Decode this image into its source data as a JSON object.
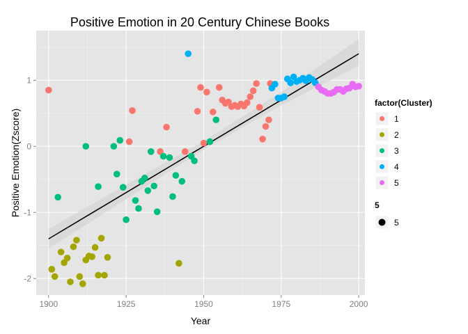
{
  "chart_data": {
    "type": "scatter",
    "title": "Positive Emotion in 20 Century Chinese Books",
    "xlabel": "Year",
    "ylabel": "Positive Emotion(Zscore)",
    "xlim": [
      1896,
      2002
    ],
    "ylim": [
      -2.25,
      1.75
    ],
    "x_ticks": [
      1900,
      1925,
      1950,
      1975,
      2000
    ],
    "x_tick_labels": [
      "1900",
      "1925",
      "1950",
      "1975",
      "2000"
    ],
    "y_ticks": [
      -2,
      -1,
      0,
      1
    ],
    "y_tick_labels": [
      "-2",
      "-1",
      "0",
      "1"
    ],
    "grid": true,
    "fit_line": {
      "x": [
        1900,
        2000
      ],
      "y": [
        -1.4,
        1.4
      ]
    },
    "fit_band": {
      "x": [
        1900,
        1925,
        1950,
        1975,
        2000
      ],
      "lower": [
        -1.55,
        -0.8,
        -0.05,
        0.62,
        1.22
      ],
      "upper": [
        -1.25,
        -0.58,
        0.08,
        0.82,
        1.62
      ]
    },
    "series": [
      {
        "name": "1",
        "color": "#F8766D",
        "points": [
          [
            1900,
            0.85
          ],
          [
            1926,
            0.07
          ],
          [
            1927,
            0.54
          ],
          [
            1936,
            -0.08
          ],
          [
            1938,
            0.29
          ],
          [
            1944,
            -0.08
          ],
          [
            1948,
            0.53
          ],
          [
            1949,
            0.89
          ],
          [
            1950,
            0.05
          ],
          [
            1951,
            0.82
          ],
          [
            1953,
            0.52
          ],
          [
            1955,
            0.89
          ],
          [
            1956,
            0.7
          ],
          [
            1957,
            0.65
          ],
          [
            1958,
            0.67
          ],
          [
            1959,
            0.6
          ],
          [
            1960,
            0.62
          ],
          [
            1961,
            0.6
          ],
          [
            1962,
            0.64
          ],
          [
            1963,
            0.61
          ],
          [
            1964,
            0.66
          ],
          [
            1965,
            0.75
          ],
          [
            1966,
            0.84
          ],
          [
            1967,
            0.95
          ],
          [
            1968,
            0.59
          ],
          [
            1969,
            0.11
          ],
          [
            1970,
            0.3
          ],
          [
            1971,
            0.4
          ],
          [
            1971.5,
            0.95
          ]
        ]
      },
      {
        "name": "2",
        "color": "#A3A500",
        "points": [
          [
            1901,
            -1.86
          ],
          [
            1902,
            -1.97
          ],
          [
            1904,
            -1.6
          ],
          [
            1905,
            -1.76
          ],
          [
            1906,
            -1.69
          ],
          [
            1907,
            -2.05
          ],
          [
            1908,
            -1.52
          ],
          [
            1909,
            -1.42
          ],
          [
            1910,
            -1.97
          ],
          [
            1911,
            -2.08
          ],
          [
            1912,
            -1.72
          ],
          [
            1913,
            -1.66
          ],
          [
            1914,
            -1.67
          ],
          [
            1915,
            -1.53
          ],
          [
            1916,
            -1.95
          ],
          [
            1917,
            -1.39
          ],
          [
            1918,
            -1.95
          ],
          [
            1919,
            -1.68
          ],
          [
            1942,
            -1.77
          ]
        ]
      },
      {
        "name": "3",
        "color": "#00BF7D",
        "points": [
          [
            1903,
            -0.77
          ],
          [
            1912,
            0.0
          ],
          [
            1916,
            -0.61
          ],
          [
            1921,
            0.0
          ],
          [
            1922,
            -0.42
          ],
          [
            1923,
            0.09
          ],
          [
            1924,
            -0.62
          ],
          [
            1925,
            -1.11
          ],
          [
            1928,
            -0.82
          ],
          [
            1929,
            -0.94
          ],
          [
            1930,
            -0.53
          ],
          [
            1931,
            -0.48
          ],
          [
            1932,
            -0.67
          ],
          [
            1933,
            -0.08
          ],
          [
            1934,
            -0.6
          ],
          [
            1935,
            -0.99
          ],
          [
            1937,
            -0.15
          ],
          [
            1939,
            -0.17
          ],
          [
            1940,
            -0.76
          ],
          [
            1941,
            -0.44
          ],
          [
            1943,
            -0.53
          ],
          [
            1946,
            -0.15
          ],
          [
            1947,
            -0.22
          ],
          [
            1952,
            0.07
          ],
          [
            1954,
            0.4
          ]
        ]
      },
      {
        "name": "4",
        "color": "#00B0F6",
        "points": [
          [
            1945,
            1.4
          ],
          [
            1972,
            0.88
          ],
          [
            1973,
            0.94
          ],
          [
            1974,
            0.73
          ],
          [
            1975,
            0.73
          ],
          [
            1976,
            0.75
          ],
          [
            1977,
            1.02
          ],
          [
            1978,
            0.96
          ],
          [
            1979,
            1.05
          ],
          [
            1980,
            0.98
          ],
          [
            1981,
            1.0
          ],
          [
            1982,
            1.03
          ],
          [
            1983,
            0.99
          ],
          [
            1984,
            1.04
          ],
          [
            1985,
            1.01
          ],
          [
            1986,
            0.96
          ]
        ]
      },
      {
        "name": "5",
        "color": "#E76BF3",
        "points": [
          [
            1987,
            0.9
          ],
          [
            1988,
            0.85
          ],
          [
            1989,
            0.83
          ],
          [
            1990,
            0.8
          ],
          [
            1991,
            0.8
          ],
          [
            1992,
            0.82
          ],
          [
            1993,
            0.86
          ],
          [
            1994,
            0.86
          ],
          [
            1995,
            0.83
          ],
          [
            1996,
            0.87
          ],
          [
            1997,
            0.88
          ],
          [
            1998,
            0.94
          ],
          [
            1999,
            0.9
          ],
          [
            2000,
            0.91
          ]
        ]
      }
    ],
    "legend": {
      "placement": "right",
      "color_title": "factor(Cluster)",
      "color_labels": [
        "1",
        "2",
        "3",
        "4",
        "5"
      ],
      "size_title": "5",
      "size_label": "5"
    }
  }
}
